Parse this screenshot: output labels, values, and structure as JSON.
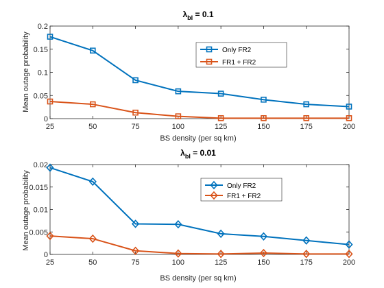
{
  "chart_data": [
    {
      "type": "line",
      "title_main": "λ",
      "title_sub": "bl",
      "title_rest": " = 0.1",
      "xlabel": "BS density (per sq km)",
      "ylabel": "Mean outage probability",
      "x": [
        25,
        50,
        75,
        100,
        125,
        150,
        175,
        200
      ],
      "xlim": [
        25,
        200
      ],
      "ylim": [
        0,
        0.2
      ],
      "x_ticks": [
        "25",
        "50",
        "75",
        "100",
        "125",
        "150",
        "175",
        "200"
      ],
      "y_ticks": [
        "0",
        "0.05",
        "0.1",
        "0.15",
        "0.2"
      ],
      "y_tick_values": [
        0,
        0.05,
        0.1,
        0.15,
        0.2
      ],
      "marker": "square",
      "grid": false,
      "legend_position": "upper-right-inside",
      "series": [
        {
          "name": "Only FR2",
          "color": "#0072BD",
          "values": [
            0.177,
            0.147,
            0.083,
            0.059,
            0.054,
            0.041,
            0.031,
            0.026
          ]
        },
        {
          "name": "FR1 + FR2",
          "color": "#D95319",
          "values": [
            0.037,
            0.031,
            0.013,
            0.005,
            0.001,
            0.001,
            0.001,
            0.001
          ]
        }
      ]
    },
    {
      "type": "line",
      "title_main": "λ",
      "title_sub": "bl",
      "title_rest": " = 0.01",
      "xlabel": "BS density (per sq km)",
      "ylabel": "Mean outage probability",
      "x": [
        25,
        50,
        75,
        100,
        125,
        150,
        175,
        200
      ],
      "xlim": [
        25,
        200
      ],
      "ylim": [
        0,
        0.02
      ],
      "x_ticks": [
        "25",
        "50",
        "75",
        "100",
        "125",
        "150",
        "175",
        "200"
      ],
      "y_ticks": [
        "0",
        "0.005",
        "0.01",
        "0.015",
        "0.02"
      ],
      "y_tick_values": [
        0,
        0.005,
        0.01,
        0.015,
        0.02
      ],
      "marker": "diamond",
      "grid": false,
      "legend_position": "upper-right-inside",
      "series": [
        {
          "name": "Only FR2",
          "color": "#0072BD",
          "values": [
            0.0193,
            0.0162,
            0.0068,
            0.0067,
            0.0046,
            0.004,
            0.0031,
            0.0022
          ]
        },
        {
          "name": "FR1 + FR2",
          "color": "#D95319",
          "values": [
            0.0041,
            0.0035,
            0.0008,
            0.0002,
            0.0001,
            0.0003,
            0.0001,
            0.0001
          ]
        }
      ]
    }
  ]
}
